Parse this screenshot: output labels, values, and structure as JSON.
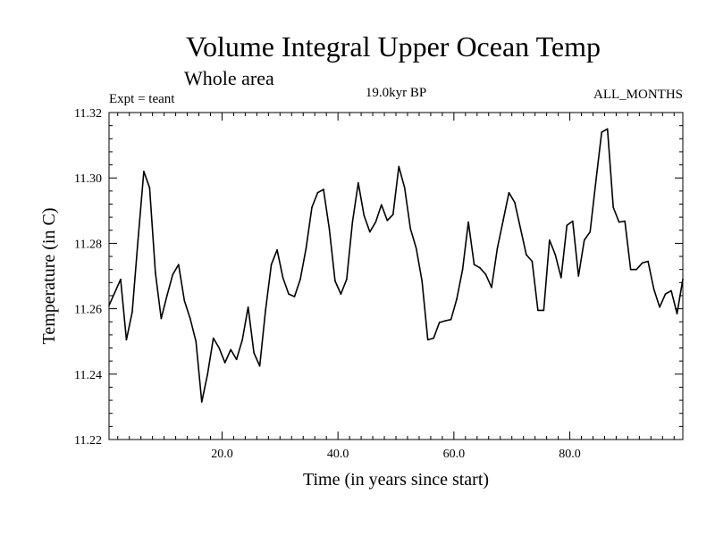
{
  "chart_data": {
    "type": "line",
    "title": "Volume Integral Upper Ocean Temp",
    "subtitle": "Whole area",
    "expt_label": "Expt = teant",
    "time_label": "19.0kyr BP",
    "months_label": "ALL_MONTHS",
    "xlabel": "Time (in years since start)",
    "ylabel": "Temperature (in C)",
    "xlim": [
      0.5,
      99.5
    ],
    "ylim": [
      11.22,
      11.32
    ],
    "x_ticks": [
      20,
      40,
      60,
      80
    ],
    "x_tick_labels": [
      "20.0",
      "40.0",
      "60.0",
      "80.0"
    ],
    "y_ticks": [
      11.22,
      11.24,
      11.26,
      11.28,
      11.3,
      11.32
    ],
    "y_tick_labels": [
      "11.22",
      "11.24",
      "11.26",
      "11.28",
      "11.30",
      "11.32"
    ],
    "x_minor_step": 2,
    "y_minor_step": 0.004,
    "series": [
      {
        "name": "Volume Integral Upper Ocean Temp",
        "color": "#000000",
        "x": [
          0.5,
          1.5,
          2.5,
          3.5,
          4.5,
          5.5,
          6.5,
          7.5,
          8.5,
          9.5,
          10.5,
          11.5,
          12.5,
          13.5,
          14.5,
          15.5,
          16.5,
          17.5,
          18.5,
          19.5,
          20.5,
          21.5,
          22.5,
          23.5,
          24.5,
          25.5,
          26.5,
          27.5,
          28.5,
          29.5,
          30.5,
          31.5,
          32.5,
          33.5,
          34.5,
          35.5,
          36.5,
          37.5,
          38.5,
          39.5,
          40.5,
          41.5,
          42.5,
          43.5,
          44.5,
          45.5,
          46.5,
          47.5,
          48.5,
          49.5,
          50.5,
          51.5,
          52.5,
          53.5,
          54.5,
          55.5,
          56.5,
          57.5,
          58.5,
          59.5,
          60.5,
          61.5,
          62.5,
          63.5,
          64.5,
          65.5,
          66.5,
          67.5,
          68.5,
          69.5,
          70.5,
          71.5,
          72.5,
          73.5,
          74.5,
          75.5,
          76.5,
          77.5,
          78.5,
          79.5,
          80.5,
          81.5,
          82.5,
          83.5,
          84.5,
          85.5,
          86.5,
          87.5,
          88.5,
          89.5,
          90.5,
          91.5,
          92.5,
          93.5,
          94.5,
          95.5,
          96.5,
          97.5,
          98.5,
          99.5
        ],
        "values": [
          11.261,
          11.265,
          11.269,
          11.2505,
          11.259,
          11.281,
          11.302,
          11.297,
          11.271,
          11.257,
          11.264,
          11.2705,
          11.2735,
          11.2625,
          11.257,
          11.25,
          11.2315,
          11.24,
          11.251,
          11.248,
          11.2435,
          11.2475,
          11.2445,
          11.2505,
          11.2605,
          11.2465,
          11.2425,
          11.2595,
          11.2735,
          11.278,
          11.2695,
          11.2645,
          11.2637,
          11.269,
          11.2785,
          11.291,
          11.2955,
          11.2965,
          11.2845,
          11.2685,
          11.2645,
          11.269,
          11.2865,
          11.2985,
          11.2885,
          11.2835,
          11.2865,
          11.2918,
          11.287,
          11.2888,
          11.3035,
          11.297,
          11.2845,
          11.2785,
          11.2685,
          11.2505,
          11.251,
          11.2558,
          11.2563,
          11.2567,
          11.263,
          11.272,
          11.2865,
          11.2735,
          11.2725,
          11.2705,
          11.2665,
          11.2785,
          11.287,
          11.2955,
          11.2925,
          11.2845,
          11.2765,
          11.2745,
          11.2595,
          11.2595,
          11.281,
          11.2765,
          11.2695,
          11.2855,
          11.2868,
          11.27,
          11.281,
          11.2835,
          11.299,
          11.314,
          11.315,
          11.291,
          11.2865,
          11.2868,
          11.272,
          11.272,
          11.274,
          11.2745,
          11.266,
          11.2605,
          11.2645,
          11.2655,
          11.2585,
          11.269
        ]
      }
    ]
  }
}
